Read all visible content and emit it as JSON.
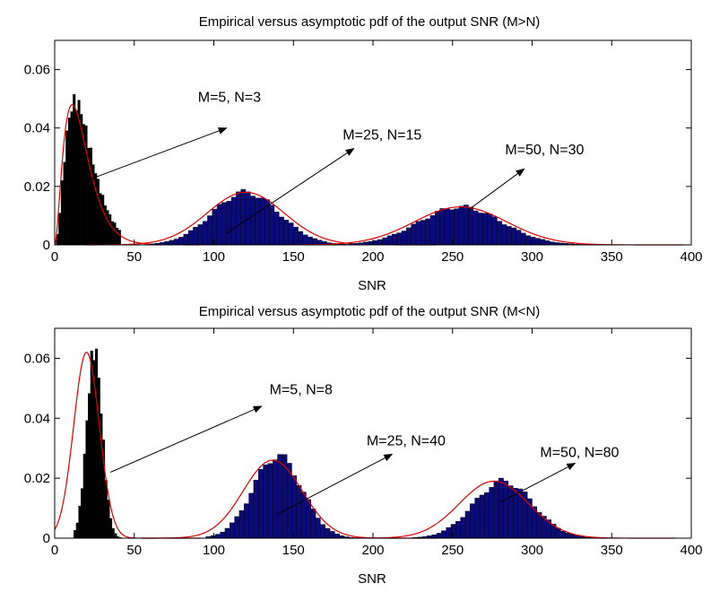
{
  "colors": {
    "bar_fill": "#0a0a78",
    "bar_fill_dark": "#000000",
    "bar_edge": "#000000",
    "curve": "#e00000",
    "axis": "#000000",
    "arrow": "#000000"
  },
  "chart_data": [
    {
      "type": "bar",
      "title": "Empirical versus asymptotic pdf of the output SNR (M>N)",
      "xlabel": "SNR",
      "ylabel": "",
      "xlim": [
        0,
        400
      ],
      "ylim": [
        0,
        0.07
      ],
      "xticks": [
        "0",
        "50",
        "100",
        "150",
        "200",
        "250",
        "300",
        "350",
        "400"
      ],
      "yticks": [
        "0",
        "0.02",
        "0.04",
        "0.06"
      ],
      "grid": false,
      "series": [
        {
          "name": "M=5, N=3",
          "kind": "gamma-like",
          "peak_x": 13,
          "peak_y": 0.049,
          "support": [
            1,
            41
          ],
          "fill": "bar_fill_dark",
          "annotation": {
            "label": "M=5, N=3",
            "x": 90,
            "y": 0.049,
            "arrow_from": [
              20,
              0.022
            ],
            "arrow_to": [
              108,
              0.04
            ]
          }
        },
        {
          "name": "M=25, N=15",
          "kind": "normal-like",
          "mean": 120,
          "peak_y": 0.018,
          "support": [
            60,
            190
          ],
          "fill": "bar_fill",
          "annotation": {
            "label": "M=25, N=15",
            "x": 181,
            "y": 0.036,
            "arrow_from": [
              108,
              0.004
            ],
            "arrow_to": [
              188,
              0.033
            ]
          }
        },
        {
          "name": "M=50, N=30",
          "kind": "normal-like",
          "mean": 255,
          "peak_y": 0.013,
          "support": [
            185,
            345
          ],
          "fill": "bar_fill",
          "annotation": {
            "label": "M=50, N=30",
            "x": 283,
            "y": 0.031,
            "arrow_from": [
              260,
              0.012
            ],
            "arrow_to": [
              295,
              0.026
            ]
          }
        }
      ]
    },
    {
      "type": "bar",
      "title": "Empirical versus asymptotic pdf of the output SNR (M<N)",
      "xlabel": "SNR",
      "ylabel": "",
      "xlim": [
        0,
        400
      ],
      "ylim": [
        0,
        0.07
      ],
      "xticks": [
        "0",
        "50",
        "100",
        "150",
        "200",
        "250",
        "300",
        "350",
        "400"
      ],
      "yticks": [
        "0",
        "0.02",
        "0.04",
        "0.06"
      ],
      "grid": false,
      "series": [
        {
          "name": "M=5, N=8",
          "kind": "normal-like",
          "mean": 25,
          "peak_y": 0.063,
          "support": [
            12,
            42
          ],
          "curve_mean": 20,
          "curve_peak": 0.062,
          "fill": "bar_fill_dark",
          "annotation": {
            "label": "M=5, N=8",
            "x": 135,
            "y": 0.048,
            "arrow_from": [
              35,
              0.022
            ],
            "arrow_to": [
              130,
              0.044
            ]
          }
        },
        {
          "name": "M=25, N=40",
          "kind": "normal-like",
          "mean": 140,
          "peak_y": 0.0275,
          "support": [
            95,
            190
          ],
          "curve_mean": 137,
          "curve_peak": 0.026,
          "fill": "bar_fill",
          "annotation": {
            "label": "M=25, N=40",
            "x": 196,
            "y": 0.031,
            "arrow_from": [
              140,
              0.008
            ],
            "arrow_to": [
              212,
              0.028
            ]
          }
        },
        {
          "name": "M=50, N=80",
          "kind": "normal-like",
          "mean": 282,
          "peak_y": 0.019,
          "support": [
            225,
            340
          ],
          "curve_mean": 276,
          "curve_peak": 0.019,
          "fill": "bar_fill",
          "annotation": {
            "label": "M=50, N=80",
            "x": 305,
            "y": 0.027,
            "arrow_from": [
              280,
              0.012
            ],
            "arrow_to": [
              327,
              0.025
            ]
          }
        }
      ]
    }
  ]
}
